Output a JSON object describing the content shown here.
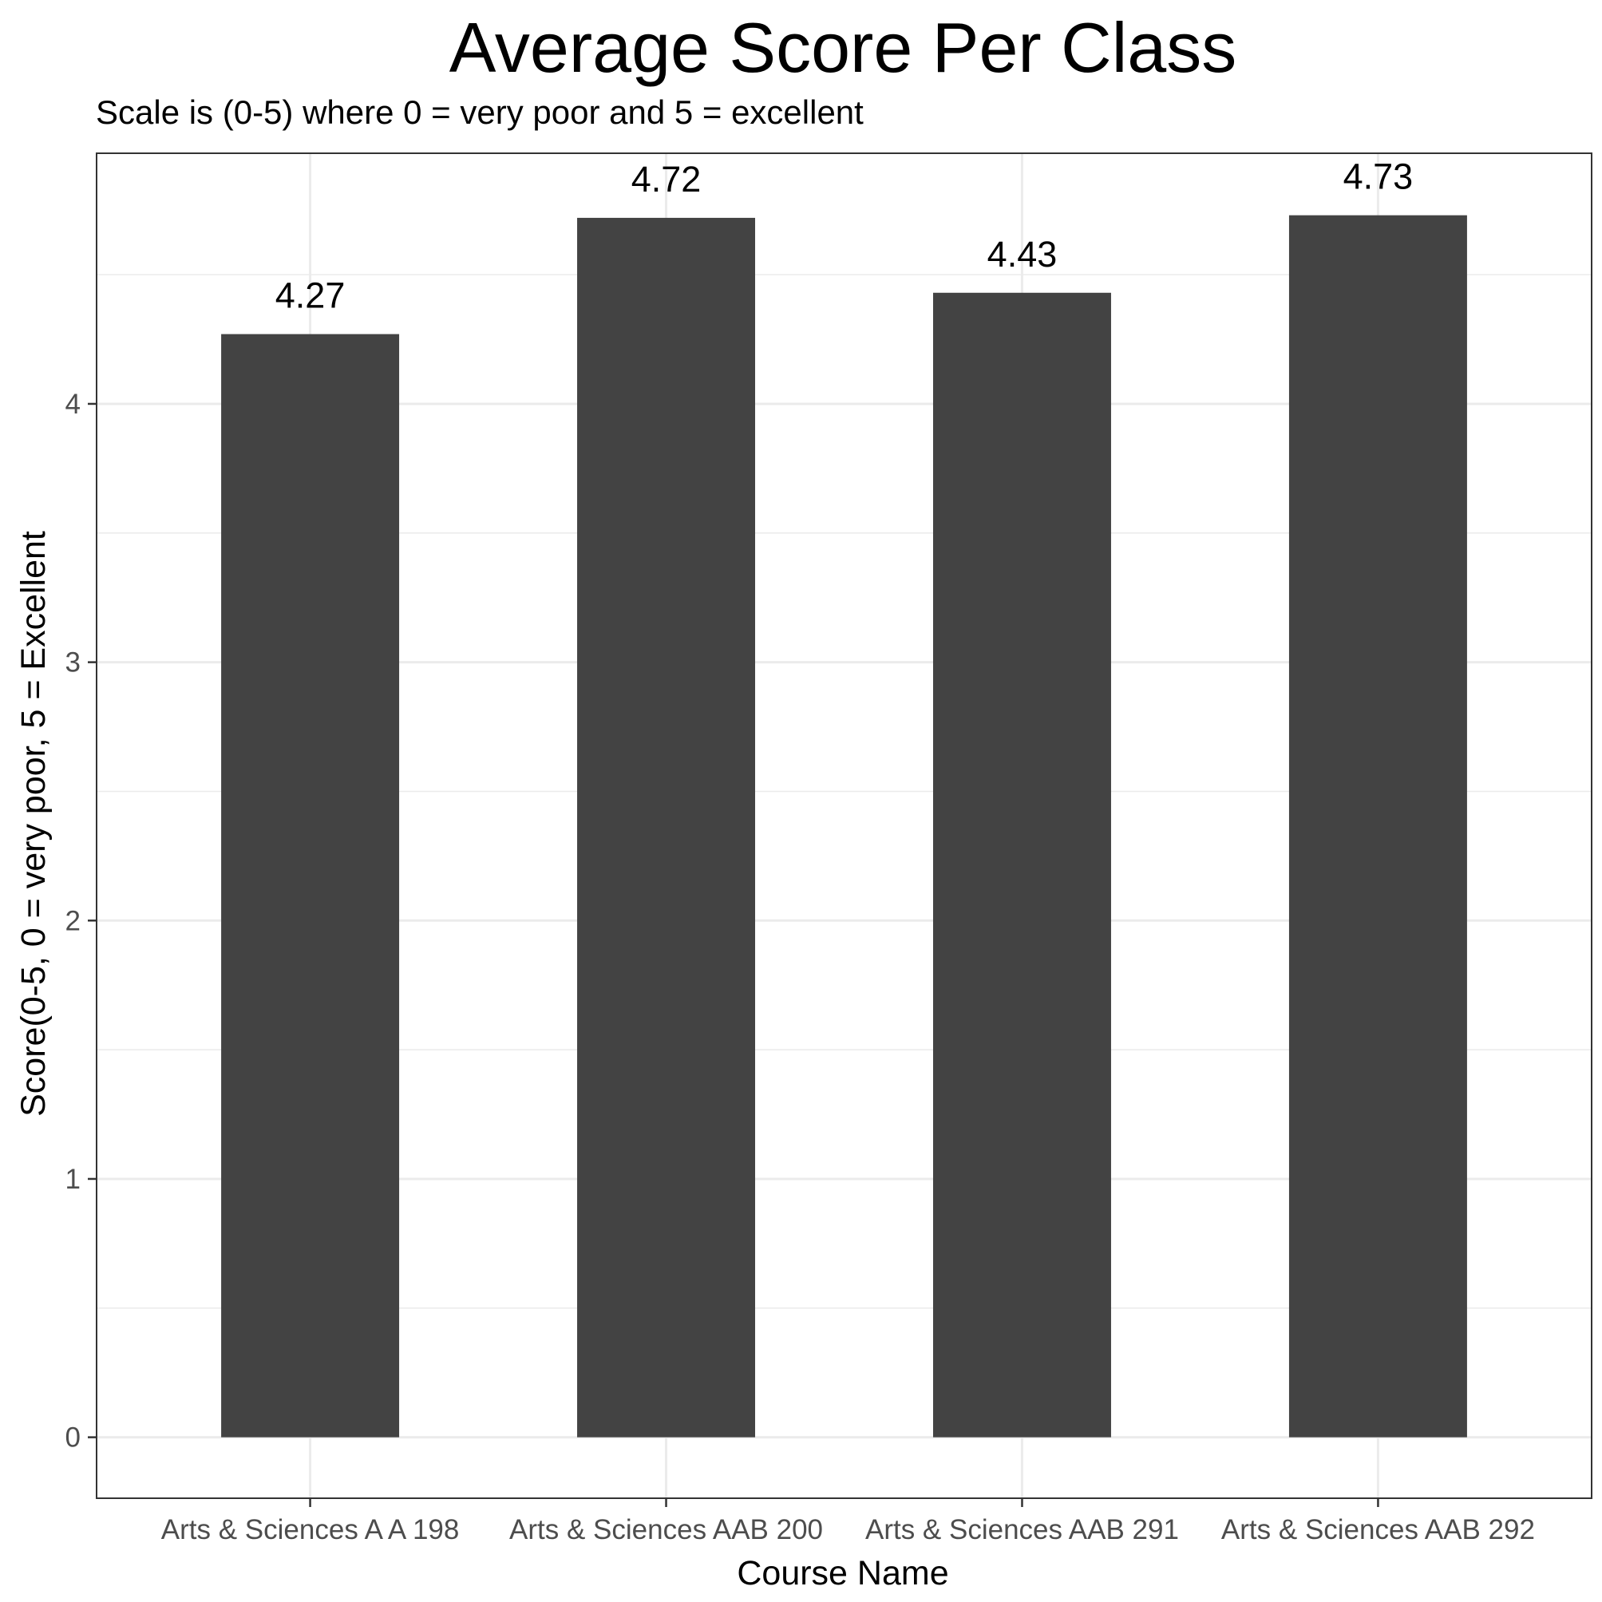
{
  "chart_data": {
    "type": "bar",
    "title": "Average Score Per Class",
    "subtitle": "Scale is (0-5) where 0 = very poor and 5 = excellent",
    "xlabel": "Course Name",
    "ylabel": "Score(0-5, 0 = very poor, 5 = Excellent",
    "categories": [
      "Arts & Sciences A A 198",
      "Arts & Sciences AAB 200",
      "Arts & Sciences AAB 291",
      "Arts & Sciences AAB 292"
    ],
    "values": [
      4.27,
      4.72,
      4.43,
      4.73
    ],
    "data_labels": [
      "4.27",
      "4.72",
      "4.43",
      "4.73"
    ],
    "ylim": [
      -0.236,
      4.97
    ],
    "yticks": [
      0,
      1,
      2,
      3,
      4
    ],
    "grid": true,
    "legend": "none",
    "colors": {
      "bar": "#434343",
      "grid": "#ebebeb",
      "panel_border": "#333333",
      "tick": "#333333"
    }
  }
}
